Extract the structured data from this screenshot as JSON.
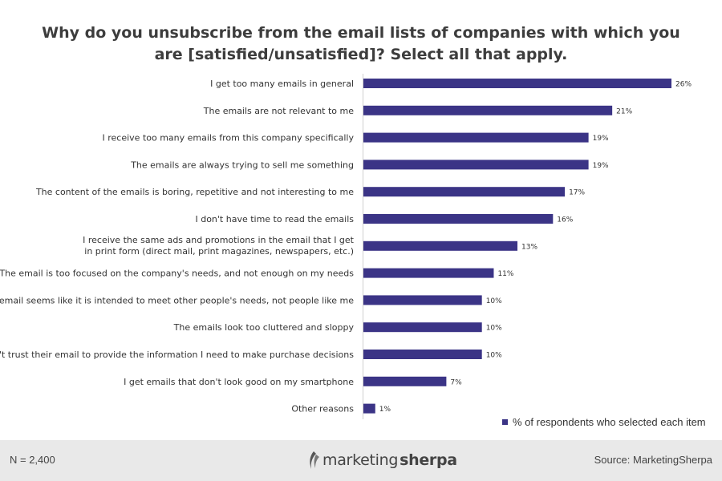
{
  "chart_data": {
    "type": "bar",
    "orientation": "horizontal",
    "title": "Why do you unsubscribe from the email lists of companies with which you are [satisfied/unsatisfied]? Select all that apply.",
    "categories": [
      "I get too many emails in general",
      "The emails are not relevant to me",
      "I receive too many emails from this company specifically",
      "The emails are always trying to sell me something",
      "The content of the emails is boring, repetitive and not interesting to me",
      "I don't have time to read the emails",
      "I receive the same ads and promotions in the email that I get in print form (direct mail, print magazines, newspapers, etc.)",
      "The email is too focused on the company's needs, and not enough on my needs",
      "The email seems like it is intended to meet other people's needs, not people like me",
      "The emails look too cluttered and sloppy",
      "I don't trust their email to provide the information I need to make purchase decisions",
      "I get emails that don't look good on my smartphone",
      "Other reasons"
    ],
    "series": [
      {
        "name": "% of respondents who selected each item",
        "values": [
          26,
          21,
          19,
          19,
          17,
          16,
          13,
          11,
          10,
          10,
          10,
          7,
          1
        ],
        "value_labels": [
          "26%",
          "21%",
          "19%",
          "19%",
          "17%",
          "16%",
          "13%",
          "11%",
          "10%",
          "10%",
          "10%",
          "7%",
          "1%"
        ]
      }
    ],
    "xlim": [
      0,
      26
    ],
    "grid": false,
    "legend_position": "bottom-right",
    "bar_color": "#3b3486"
  },
  "footer": {
    "sample_size": "N = 2,400",
    "logo_light": "marketing",
    "logo_bold": "sherpa",
    "source": "Source: MarketingSherpa"
  }
}
